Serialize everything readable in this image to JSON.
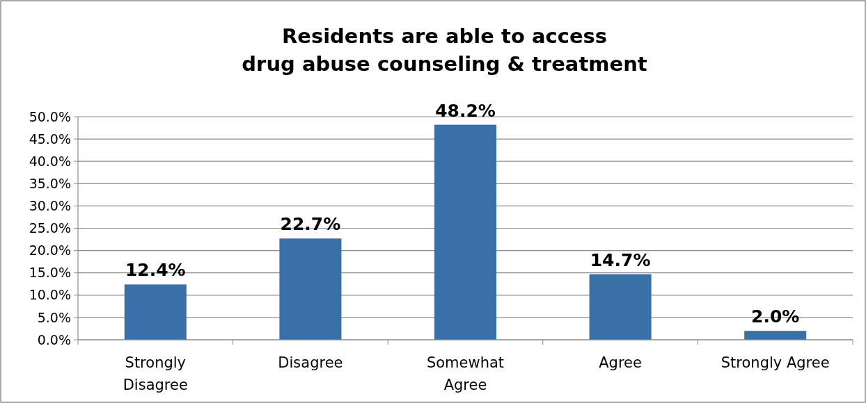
{
  "chart_data": {
    "type": "bar",
    "title": "Residents are able to access\ndrug abuse counseling & treatment",
    "categories": [
      "Strongly\nDisagree",
      "Disagree",
      "Somewhat\nAgree",
      "Agree",
      "Strongly Agree"
    ],
    "values": [
      12.4,
      22.7,
      48.2,
      14.7,
      2.0
    ],
    "value_labels": [
      "12.4%",
      "22.7%",
      "48.2%",
      "14.7%",
      "2.0%"
    ],
    "color": "#3a70a8",
    "ylim": [
      0,
      50
    ],
    "yticks": [
      {
        "value": 0,
        "label": "0.0%"
      },
      {
        "value": 5,
        "label": "5.0%"
      },
      {
        "value": 10,
        "label": "10.0%"
      },
      {
        "value": 15,
        "label": "15.0%"
      },
      {
        "value": 20,
        "label": "20.0%"
      },
      {
        "value": 25,
        "label": "25.0%"
      },
      {
        "value": 30,
        "label": "30.0%"
      },
      {
        "value": 35,
        "label": "35.0%"
      },
      {
        "value": 40,
        "label": "40.0%"
      },
      {
        "value": 45,
        "label": "45.0%"
      },
      {
        "value": 50,
        "label": "50.0%"
      }
    ],
    "grid": "y"
  }
}
